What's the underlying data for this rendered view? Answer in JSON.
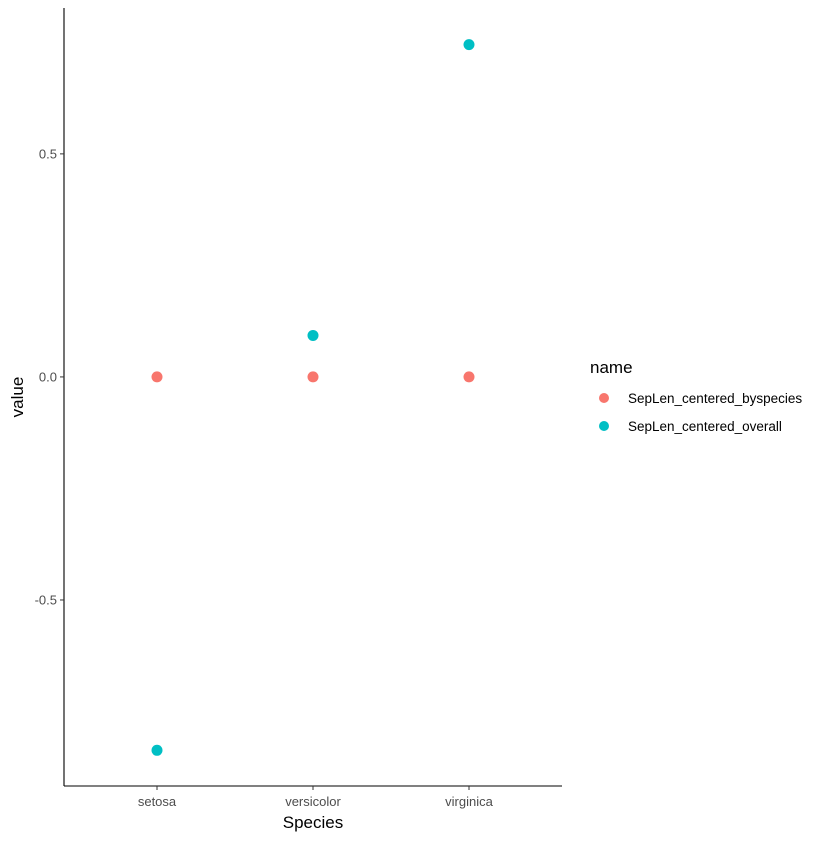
{
  "chart_data": {
    "type": "scatter",
    "title": "",
    "xlabel": "Species",
    "ylabel": "value",
    "categories": [
      "setosa",
      "versicolor",
      "virginica"
    ],
    "ylim": [
      -0.917,
      0.827
    ],
    "yticks": [
      -0.5,
      0.0,
      0.5
    ],
    "ytick_labels": [
      "-0.5",
      "0.0",
      "0.5"
    ],
    "grid": false,
    "legend": {
      "title": "name",
      "placement": "right"
    },
    "series": [
      {
        "name": "SepLen_centered_byspecies",
        "color": "#F8766D",
        "values": [
          0.0,
          0.0,
          0.0
        ]
      },
      {
        "name": "SepLen_centered_overall",
        "color": "#00BFC4",
        "values": [
          -0.837,
          0.093,
          0.745
        ]
      }
    ]
  }
}
